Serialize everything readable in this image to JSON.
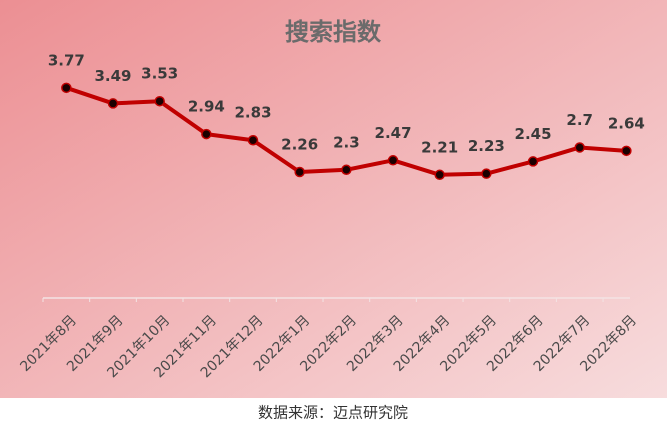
{
  "chart_data": {
    "type": "line",
    "title": "搜索指数",
    "categories": [
      "2021年8月",
      "2021年9月",
      "2021年10月",
      "2021年11月",
      "2021年12月",
      "2022年1月",
      "2022年2月",
      "2022年3月",
      "2022年4月",
      "2022年5月",
      "2022年6月",
      "2022年7月",
      "2022年8月"
    ],
    "values": [
      3.77,
      3.49,
      3.53,
      2.94,
      2.83,
      2.26,
      2.3,
      2.47,
      2.21,
      2.23,
      2.45,
      2.7,
      2.64
    ],
    "color": "#c00000",
    "ylim": [
      0,
      4
    ],
    "source": "数据来源：迈点研究院"
  }
}
